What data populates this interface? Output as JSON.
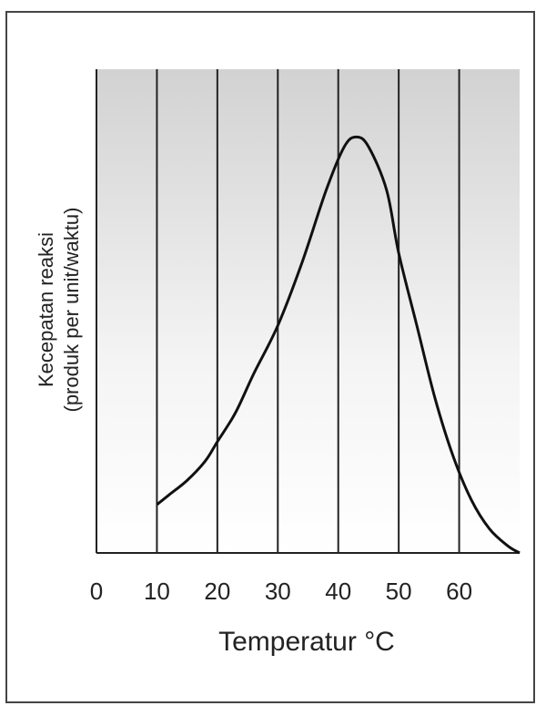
{
  "chart_data": {
    "type": "line",
    "title": "",
    "xlabel": "Temperatur °C",
    "ylabel_line1": "Kecepatan reaksi",
    "ylabel_line2": "(produk per unit/waktu)",
    "x_ticks": [
      "0",
      "10",
      "20",
      "30",
      "40",
      "50",
      "60"
    ],
    "xlim": [
      0,
      70
    ],
    "ylim": [
      0,
      100
    ],
    "grid": "vertical",
    "background": "gradient-gray",
    "series": [
      {
        "x": [
          10,
          12,
          15,
          18,
          20,
          23,
          26,
          30,
          34,
          38,
          41,
          43,
          45,
          48,
          50,
          53,
          56,
          59,
          62,
          65,
          68,
          70
        ],
        "y": [
          10,
          12,
          15,
          19,
          23,
          29,
          37,
          47,
          60,
          75,
          84,
          86,
          84,
          75,
          62,
          47,
          32,
          20,
          11,
          5,
          1.5,
          0
        ]
      }
    ]
  },
  "colors": {
    "line": "#111111",
    "grid": "#222222",
    "bg_top": "#d2d2d2",
    "bg_bottom": "#ffffff"
  }
}
